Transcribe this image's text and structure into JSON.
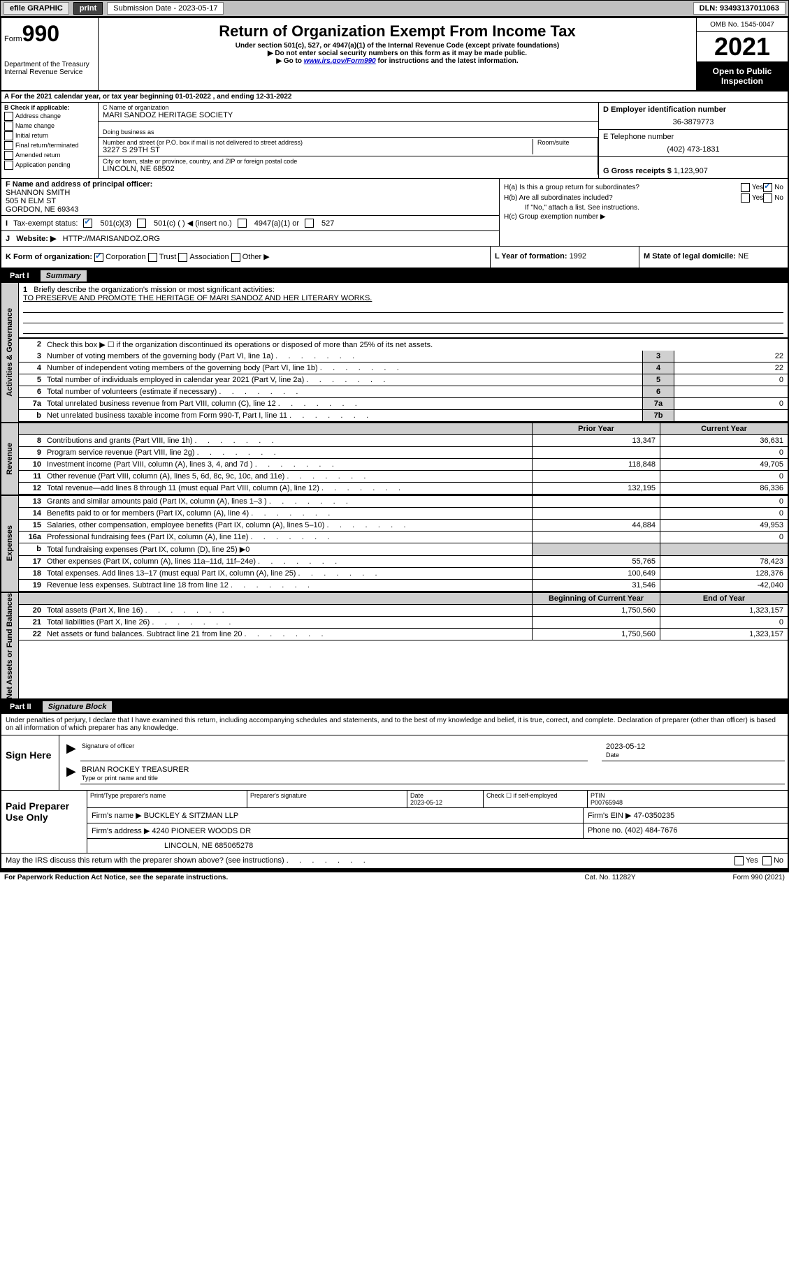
{
  "topbar": {
    "efile": "efile GRAPHIC",
    "print": "print",
    "submission_label": "Submission Date - 2023-05-17",
    "dln": "DLN: 93493137011063"
  },
  "header": {
    "form_prefix": "Form",
    "form_number": "990",
    "dept": "Department of the Treasury",
    "irs": "Internal Revenue Service",
    "title": "Return of Organization Exempt From Income Tax",
    "subtitle": "Under section 501(c), 527, or 4947(a)(1) of the Internal Revenue Code (except private foundations)",
    "warn1": "▶ Do not enter social security numbers on this form as it may be made public.",
    "warn2_pre": "▶ Go to ",
    "warn2_link": "www.irs.gov/Form990",
    "warn2_post": " for instructions and the latest information.",
    "omb": "OMB No. 1545-0047",
    "year": "2021",
    "open": "Open to Public Inspection"
  },
  "A": {
    "text": "For the 2021 calendar year, or tax year beginning 01-01-2022   , and ending 12-31-2022"
  },
  "B": {
    "label": "B Check if applicable:",
    "opts": [
      "Address change",
      "Name change",
      "Initial return",
      "Final return/terminated",
      "Amended return",
      "Application pending"
    ]
  },
  "C": {
    "name_label": "C Name of organization",
    "name": "MARI SANDOZ HERITAGE SOCIETY",
    "dba_label": "Doing business as",
    "street_label": "Number and street (or P.O. box if mail is not delivered to street address)",
    "room_label": "Room/suite",
    "street": "3227 S 29TH ST",
    "city_label": "City or town, state or province, country, and ZIP or foreign postal code",
    "city": "LINCOLN, NE  68502"
  },
  "D": {
    "label": "D Employer identification number",
    "value": "36-3879773"
  },
  "E": {
    "label": "E Telephone number",
    "value": "(402) 473-1831"
  },
  "G": {
    "label": "G Gross receipts $",
    "value": "1,123,907"
  },
  "F": {
    "label": "F Name and address of principal officer:",
    "name": "SHANNON SMITH",
    "street": "505 N ELM ST",
    "city": "GORDON, NE  69343"
  },
  "I": {
    "label": "Tax-exempt status:",
    "c3": "501(c)(3)",
    "c_other": "501(c) (   ) ◀ (insert no.)",
    "a1": "4947(a)(1) or",
    "s527": "527"
  },
  "J": {
    "label": "Website: ▶",
    "value": "HTTP://MARISANDOZ.ORG"
  },
  "H": {
    "a": "H(a)  Is this a group return for subordinates?",
    "b": "H(b)  Are all subordinates included?",
    "b_note": "If \"No,\" attach a list. See instructions.",
    "c": "H(c)  Group exemption number ▶"
  },
  "K": {
    "label": "K Form of organization:",
    "opts": [
      "Corporation",
      "Trust",
      "Association",
      "Other ▶"
    ]
  },
  "L": {
    "label": "L Year of formation:",
    "value": "1992"
  },
  "M": {
    "label": "M State of legal domicile:",
    "value": "NE"
  },
  "partI": {
    "label": "Part I",
    "title": "Summary"
  },
  "summary": {
    "vtab1": "Activities & Governance",
    "vtab2": "Revenue",
    "vtab3": "Expenses",
    "vtab4": "Net Assets or Fund Balances",
    "line1_label": "Briefly describe the organization's mission or most significant activities:",
    "line1_text": "TO PRESERVE AND PROMOTE THE HERITAGE OF MARI SANDOZ AND HER LITERARY WORKS.",
    "line2": "Check this box ▶ ☐  if the organization discontinued its operations or disposed of more than 25% of its net assets.",
    "rows_gov": [
      {
        "n": "3",
        "desc": "Number of voting members of the governing body (Part VI, line 1a)",
        "cell": "3",
        "val": "22"
      },
      {
        "n": "4",
        "desc": "Number of independent voting members of the governing body (Part VI, line 1b)",
        "cell": "4",
        "val": "22"
      },
      {
        "n": "5",
        "desc": "Total number of individuals employed in calendar year 2021 (Part V, line 2a)",
        "cell": "5",
        "val": "0"
      },
      {
        "n": "6",
        "desc": "Total number of volunteers (estimate if necessary)",
        "cell": "6",
        "val": ""
      },
      {
        "n": "7a",
        "desc": "Total unrelated business revenue from Part VIII, column (C), line 12",
        "cell": "7a",
        "val": "0"
      },
      {
        "n": "b",
        "desc": "Net unrelated business taxable income from Form 990-T, Part I, line 11",
        "cell": "7b",
        "val": ""
      }
    ],
    "prior_h": "Prior Year",
    "curr_h": "Current Year",
    "rows_rev": [
      {
        "n": "8",
        "desc": "Contributions and grants (Part VIII, line 1h)",
        "p": "13,347",
        "c": "36,631"
      },
      {
        "n": "9",
        "desc": "Program service revenue (Part VIII, line 2g)",
        "p": "",
        "c": "0"
      },
      {
        "n": "10",
        "desc": "Investment income (Part VIII, column (A), lines 3, 4, and 7d )",
        "p": "118,848",
        "c": "49,705"
      },
      {
        "n": "11",
        "desc": "Other revenue (Part VIII, column (A), lines 5, 6d, 8c, 9c, 10c, and 11e)",
        "p": "",
        "c": "0"
      },
      {
        "n": "12",
        "desc": "Total revenue—add lines 8 through 11 (must equal Part VIII, column (A), line 12)",
        "p": "132,195",
        "c": "86,336"
      }
    ],
    "rows_exp": [
      {
        "n": "13",
        "desc": "Grants and similar amounts paid (Part IX, column (A), lines 1–3 )",
        "p": "",
        "c": "0"
      },
      {
        "n": "14",
        "desc": "Benefits paid to or for members (Part IX, column (A), line 4)",
        "p": "",
        "c": "0"
      },
      {
        "n": "15",
        "desc": "Salaries, other compensation, employee benefits (Part IX, column (A), lines 5–10)",
        "p": "44,884",
        "c": "49,953"
      },
      {
        "n": "16a",
        "desc": "Professional fundraising fees (Part IX, column (A), line 11e)",
        "p": "",
        "c": "0"
      }
    ],
    "line16b": "Total fundraising expenses (Part IX, column (D), line 25) ▶0",
    "rows_exp2": [
      {
        "n": "17",
        "desc": "Other expenses (Part IX, column (A), lines 11a–11d, 11f–24e)",
        "p": "55,765",
        "c": "78,423"
      },
      {
        "n": "18",
        "desc": "Total expenses. Add lines 13–17 (must equal Part IX, column (A), line 25)",
        "p": "100,649",
        "c": "128,376"
      },
      {
        "n": "19",
        "desc": "Revenue less expenses. Subtract line 18 from line 12",
        "p": "31,546",
        "c": "-42,040"
      }
    ],
    "begin_h": "Beginning of Current Year",
    "end_h": "End of Year",
    "rows_net": [
      {
        "n": "20",
        "desc": "Total assets (Part X, line 16)",
        "p": "1,750,560",
        "c": "1,323,157"
      },
      {
        "n": "21",
        "desc": "Total liabilities (Part X, line 26)",
        "p": "",
        "c": "0"
      },
      {
        "n": "22",
        "desc": "Net assets or fund balances. Subtract line 21 from line 20",
        "p": "1,750,560",
        "c": "1,323,157"
      }
    ]
  },
  "partII": {
    "label": "Part II",
    "title": "Signature Block"
  },
  "sig": {
    "penalty": "Under penalties of perjury, I declare that I have examined this return, including accompanying schedules and statements, and to the best of my knowledge and belief, it is true, correct, and complete. Declaration of preparer (other than officer) is based on all information of which preparer has any knowledge.",
    "sign_here": "Sign Here",
    "sig_officer": "Signature of officer",
    "date": "Date",
    "date_val": "2023-05-12",
    "name": "BRIAN ROCKEY TREASURER",
    "name_label": "Type or print name and title"
  },
  "prep": {
    "label": "Paid Preparer Use Only",
    "c1": "Print/Type preparer's name",
    "c2": "Preparer's signature",
    "c3_l": "Date",
    "c3_v": "2023-05-12",
    "c4": "Check ☐ if self-employed",
    "c5_l": "PTIN",
    "c5_v": "P00765948",
    "firm_l": "Firm's name    ▶",
    "firm_v": "BUCKLEY & SITZMAN LLP",
    "ein_l": "Firm's EIN ▶",
    "ein_v": "47-0350235",
    "addr_l": "Firm's address ▶",
    "addr_v1": "4240 PIONEER WOODS DR",
    "addr_v2": "LINCOLN, NE  685065278",
    "phone_l": "Phone no.",
    "phone_v": "(402) 484-7676"
  },
  "discuss": "May the IRS discuss this return with the preparer shown above? (see instructions)",
  "bottom": {
    "left": "For Paperwork Reduction Act Notice, see the separate instructions.",
    "mid": "Cat. No. 11282Y",
    "right": "Form 990 (2021)"
  },
  "yesno": {
    "yes": "Yes",
    "no": "No"
  }
}
